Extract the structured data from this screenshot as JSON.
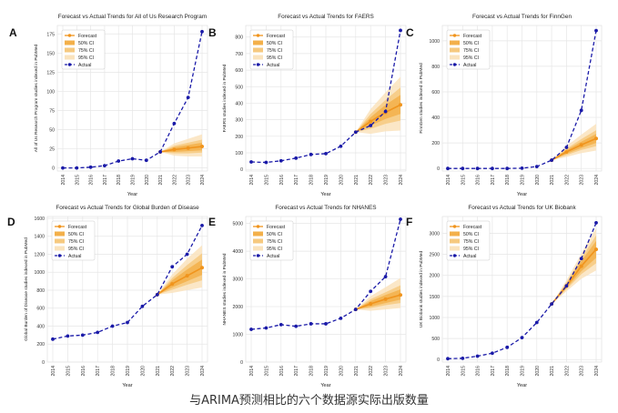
{
  "caption": "与ARIMA预测相比的六个数据源实际出版数量",
  "colors": {
    "forecast": "#f0941d",
    "ci50": "#f3b04a",
    "ci75": "#f6c97f",
    "ci95": "#fae3bd",
    "actual": "#1a1aa8",
    "grid": "#e6e6e6"
  },
  "legend_labels": [
    "Forecast",
    "50% CI",
    "75% CI",
    "95% CI",
    "Actual"
  ],
  "chart_data": [
    {
      "panel": "A",
      "type": "line",
      "title": "Forecast vs Actual Trends for All of Us Research Program",
      "xlabel": "Year",
      "ylabel": "All of Us Research Program studies indexed in PubMed",
      "x": [
        2014,
        2015,
        2016,
        2017,
        2018,
        2019,
        2020,
        2021,
        2022,
        2023,
        2024
      ],
      "actual": [
        0,
        0,
        1,
        3,
        9,
        12,
        10,
        21,
        58,
        92,
        178
      ],
      "forecast": {
        "x": [
          2021,
          2022,
          2023,
          2024
        ],
        "values": [
          21,
          24,
          26,
          28
        ],
        "ci50": [
          [
            21,
            21
          ],
          [
            21,
            27
          ],
          [
            22,
            30
          ],
          [
            23,
            33
          ]
        ],
        "ci75": [
          [
            21,
            21
          ],
          [
            19,
            29
          ],
          [
            19,
            33
          ],
          [
            20,
            37
          ]
        ],
        "ci95": [
          [
            21,
            21
          ],
          [
            16,
            32
          ],
          [
            15,
            38
          ],
          [
            15,
            44
          ]
        ]
      },
      "yticks": [
        0,
        25,
        50,
        75,
        100,
        125,
        150,
        175
      ],
      "ylim": [
        -4,
        186
      ],
      "legend": "top-left",
      "grid": true
    },
    {
      "panel": "B",
      "type": "line",
      "title": "Forecast vs Actual Trends for FAERS",
      "xlabel": "Year",
      "ylabel": "FAERS studies indexed in PubMed",
      "x": [
        2014,
        2015,
        2016,
        2017,
        2018,
        2019,
        2020,
        2021,
        2022,
        2023,
        2024
      ],
      "actual": [
        45,
        42,
        52,
        68,
        90,
        95,
        140,
        225,
        265,
        350,
        840
      ],
      "forecast": {
        "x": [
          2021,
          2022,
          2023,
          2024
        ],
        "values": [
          225,
          290,
          345,
          390
        ],
        "ci50": [
          [
            225,
            225
          ],
          [
            265,
            315
          ],
          [
            305,
            390
          ],
          [
            335,
            450
          ]
        ],
        "ci75": [
          [
            225,
            225
          ],
          [
            245,
            335
          ],
          [
            275,
            420
          ],
          [
            295,
            495
          ]
        ],
        "ci95": [
          [
            225,
            225
          ],
          [
            215,
            365
          ],
          [
            230,
            465
          ],
          [
            235,
            560
          ]
        ]
      },
      "yticks": [
        0,
        100,
        200,
        300,
        400,
        500,
        600,
        700,
        800
      ],
      "ylim": [
        -10,
        870
      ],
      "legend": "top-left",
      "grid": true
    },
    {
      "panel": "C",
      "type": "line",
      "title": "Forecast vs Actual Trends for FinnGen",
      "xlabel": "Year",
      "ylabel": "FinnGen studies indexed in PubMed",
      "x": [
        2014,
        2015,
        2016,
        2017,
        2018,
        2019,
        2020,
        2021,
        2022,
        2023,
        2024
      ],
      "actual": [
        0,
        0,
        0,
        0,
        0,
        2,
        15,
        65,
        165,
        455,
        1080
      ],
      "forecast": {
        "x": [
          2021,
          2022,
          2023,
          2024
        ],
        "values": [
          65,
          130,
          185,
          235
        ],
        "ci50": [
          [
            65,
            65
          ],
          [
            115,
            145
          ],
          [
            160,
            210
          ],
          [
            200,
            270
          ]
        ],
        "ci75": [
          [
            65,
            65
          ],
          [
            105,
            155
          ],
          [
            145,
            230
          ],
          [
            175,
            300
          ]
        ],
        "ci95": [
          [
            65,
            65
          ],
          [
            90,
            175
          ],
          [
            120,
            265
          ],
          [
            140,
            350
          ]
        ]
      },
      "yticks": [
        0,
        200,
        400,
        600,
        800,
        1000
      ],
      "ylim": [
        -20,
        1120
      ],
      "legend": "top-left",
      "grid": true
    },
    {
      "panel": "D",
      "type": "line",
      "title": "Forecast vs Actual Trends for Global Burden of Disease",
      "xlabel": "Year",
      "ylabel": "Global Burden of Disease studies indexed in PubMed",
      "x": [
        2014,
        2015,
        2016,
        2017,
        2018,
        2019,
        2020,
        2021,
        2022,
        2023,
        2024
      ],
      "actual": [
        255,
        290,
        300,
        330,
        400,
        440,
        620,
        750,
        1060,
        1200,
        1520
      ],
      "forecast": {
        "x": [
          2021,
          2022,
          2023,
          2024
        ],
        "values": [
          750,
          870,
          960,
          1050
        ],
        "ci50": [
          [
            750,
            750
          ],
          [
            830,
            910
          ],
          [
            900,
            1030
          ],
          [
            970,
            1140
          ]
        ],
        "ci75": [
          [
            750,
            750
          ],
          [
            805,
            935
          ],
          [
            860,
            1080
          ],
          [
            910,
            1210
          ]
        ],
        "ci95": [
          [
            750,
            750
          ],
          [
            770,
            975
          ],
          [
            800,
            1150
          ],
          [
            830,
            1300
          ]
        ]
      },
      "yticks": [
        0,
        200,
        400,
        600,
        800,
        1000,
        1200,
        1400,
        1600
      ],
      "ylim": [
        0,
        1620
      ],
      "legend": "top-left",
      "grid": true
    },
    {
      "panel": "E",
      "type": "line",
      "title": "Forecast vs Actual Trends for NHANES",
      "xlabel": "Year",
      "ylabel": "NHANES studies indexed in PubMed",
      "x": [
        2014,
        2015,
        2016,
        2017,
        2018,
        2019,
        2020,
        2021,
        2022,
        2023,
        2024
      ],
      "actual": [
        1180,
        1230,
        1350,
        1290,
        1380,
        1380,
        1580,
        1900,
        2550,
        3080,
        5150
      ],
      "forecast": {
        "x": [
          2021,
          2022,
          2023,
          2024
        ],
        "values": [
          1900,
          2100,
          2270,
          2420
        ],
        "ci50": [
          [
            1900,
            1900
          ],
          [
            2000,
            2200
          ],
          [
            2130,
            2420
          ],
          [
            2250,
            2620
          ]
        ],
        "ci75": [
          [
            1900,
            1900
          ],
          [
            1950,
            2270
          ],
          [
            2050,
            2520
          ],
          [
            2130,
            2770
          ]
        ],
        "ci95": [
          [
            1900,
            1900
          ],
          [
            1850,
            2380
          ],
          [
            1900,
            2700
          ],
          [
            1950,
            3030
          ]
        ]
      },
      "yticks": [
        0,
        1000,
        2000,
        3000,
        4000,
        5000
      ],
      "ylim": [
        0,
        5250
      ],
      "legend": "top-left",
      "grid": true
    },
    {
      "panel": "F",
      "type": "line",
      "title": "Forecast vs Actual Trends for UK Biobank",
      "xlabel": "Year",
      "ylabel": "UK Biobank studies indexed in PubMed",
      "x": [
        2014,
        2015,
        2016,
        2017,
        2018,
        2019,
        2020,
        2021,
        2022,
        2023,
        2024
      ],
      "actual": [
        20,
        30,
        80,
        150,
        290,
        520,
        880,
        1320,
        1750,
        2400,
        3250
      ],
      "forecast": {
        "x": [
          2021,
          2022,
          2023,
          2024
        ],
        "values": [
          1320,
          1750,
          2220,
          2620
        ],
        "ci50": [
          [
            1320,
            1320
          ],
          [
            1700,
            1800
          ],
          [
            2100,
            2340
          ],
          [
            2420,
            2820
          ]
        ],
        "ci75": [
          [
            1320,
            1320
          ],
          [
            1670,
            1830
          ],
          [
            2030,
            2410
          ],
          [
            2290,
            2950
          ]
        ],
        "ci95": [
          [
            1320,
            1320
          ],
          [
            1620,
            1880
          ],
          [
            1920,
            2520
          ],
          [
            2120,
            3130
          ]
        ]
      },
      "yticks": [
        0,
        500,
        1000,
        1500,
        2000,
        2500,
        3000
      ],
      "ylim": [
        -60,
        3400
      ],
      "legend": "top-left",
      "grid": true
    }
  ]
}
